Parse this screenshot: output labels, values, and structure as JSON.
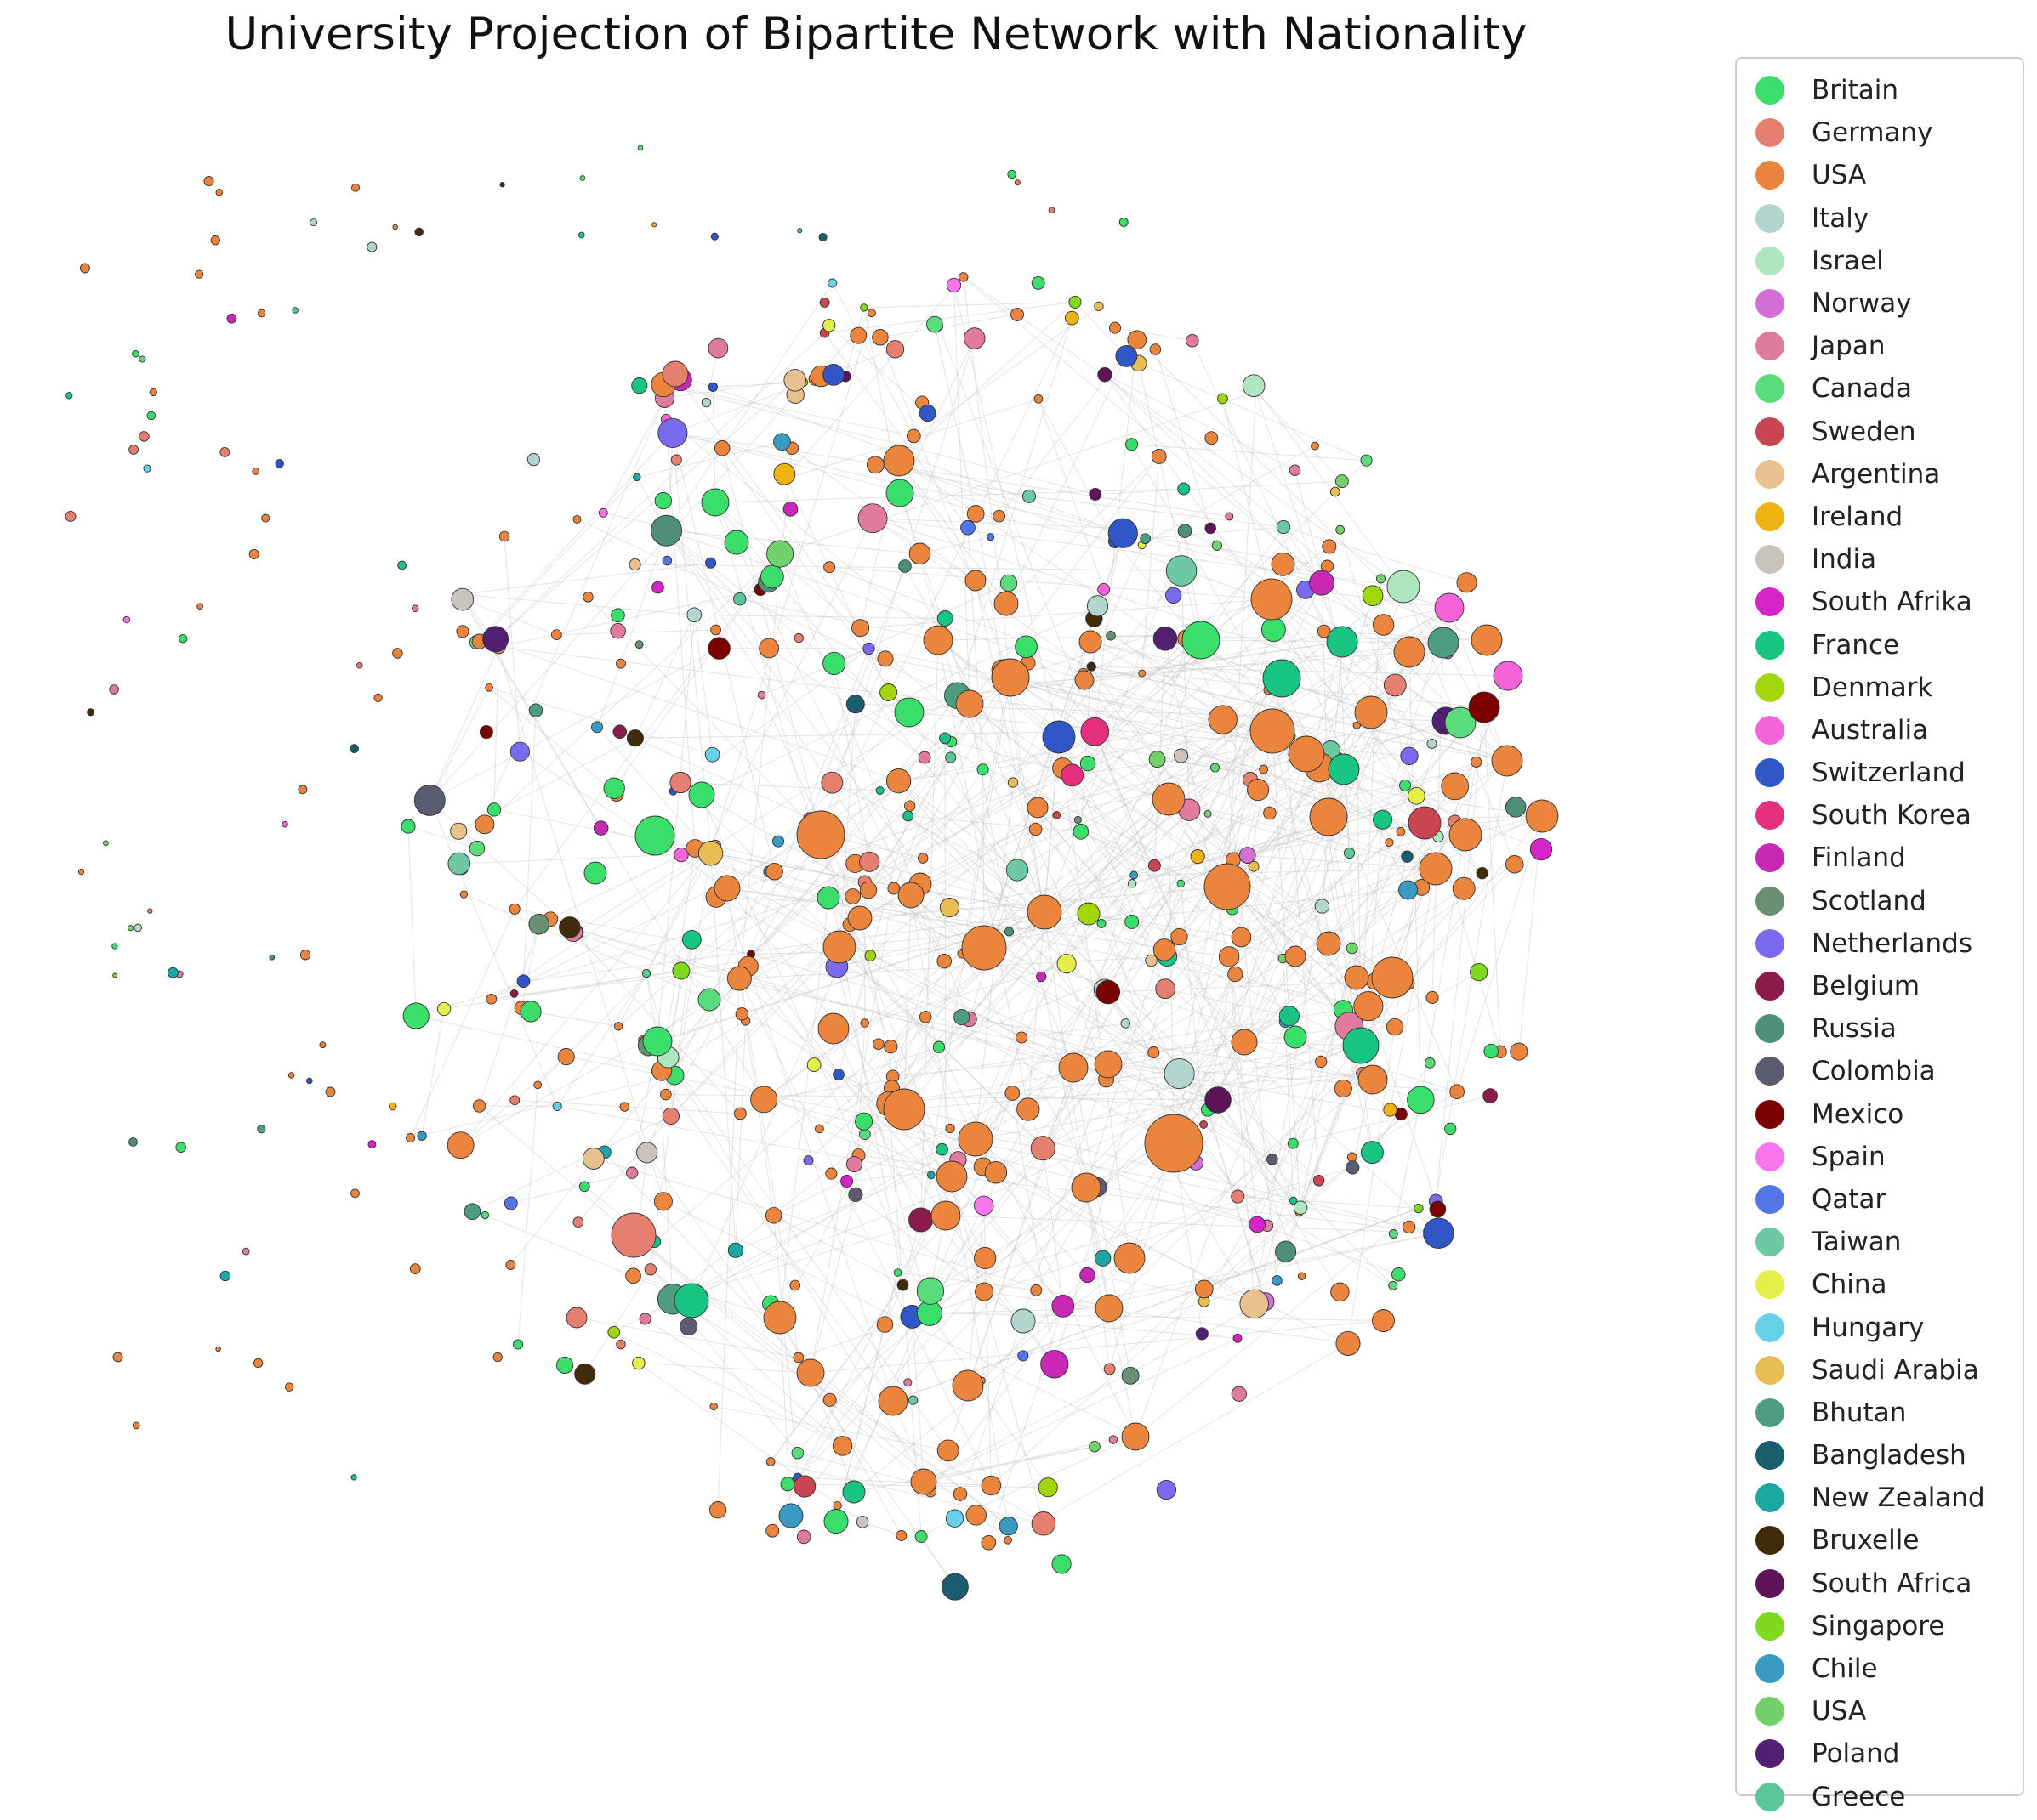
{
  "chart_data": {
    "type": "network",
    "title": "University Projection of Bipartite Network with Nationality",
    "legend_position": "right",
    "edge_color": "#c8c8c8",
    "node_outline_color": "#333333",
    "legend": [
      {
        "label": "Britain",
        "color": "#3ade6a"
      },
      {
        "label": "Germany",
        "color": "#e57f6f"
      },
      {
        "label": "USA",
        "color": "#eb843d"
      },
      {
        "label": "Italy",
        "color": "#b2d6cd"
      },
      {
        "label": "Israel",
        "color": "#afe6be"
      },
      {
        "label": "Norway",
        "color": "#d46ed6"
      },
      {
        "label": "Japan",
        "color": "#e07b9e"
      },
      {
        "label": "Canada",
        "color": "#5adc7c"
      },
      {
        "label": "Sweden",
        "color": "#c94552"
      },
      {
        "label": "Argentina",
        "color": "#e9c18f"
      },
      {
        "label": "Ireland",
        "color": "#eeb311"
      },
      {
        "label": "India",
        "color": "#c8c3bc"
      },
      {
        "label": "South Afrika",
        "color": "#d624c9"
      },
      {
        "label": "France",
        "color": "#17c482"
      },
      {
        "label": "Denmark",
        "color": "#a2d60a"
      },
      {
        "label": "Australia",
        "color": "#f464d8"
      },
      {
        "label": "Switzerland",
        "color": "#3156c8"
      },
      {
        "label": "South Korea",
        "color": "#e52f7f"
      },
      {
        "label": "Finland",
        "color": "#c828b4"
      },
      {
        "label": "Scotland",
        "color": "#699072"
      },
      {
        "label": "Netherlands",
        "color": "#7b69ef"
      },
      {
        "label": "Belgium",
        "color": "#8c1a4c"
      },
      {
        "label": "Russia",
        "color": "#508e7c"
      },
      {
        "label": "Colombia",
        "color": "#5b5b72"
      },
      {
        "label": "Mexico",
        "color": "#7b0000"
      },
      {
        "label": "Spain",
        "color": "#fa75ec"
      },
      {
        "label": "Qatar",
        "color": "#5475e5"
      },
      {
        "label": "Taiwan",
        "color": "#6ec8a3"
      },
      {
        "label": "China",
        "color": "#e5ef4b"
      },
      {
        "label": "Hungary",
        "color": "#66d2e8"
      },
      {
        "label": "Saudi Arabia",
        "color": "#e8bd54"
      },
      {
        "label": "Bhutan",
        "color": "#4d9d82"
      },
      {
        "label": "Bangladesh",
        "color": "#195d6e"
      },
      {
        "label": "New Zealand",
        "color": "#1ba8a4"
      },
      {
        "label": "Bruxelle",
        "color": "#402b0a"
      },
      {
        "label": "South Africa",
        "color": "#5e1458"
      },
      {
        "label": "Singapore",
        "color": "#7fd91e"
      },
      {
        "label": "Chile",
        "color": "#3b9ac2"
      },
      {
        "label": "USA",
        "color": "#73d16b"
      },
      {
        "label": "Poland",
        "color": "#512073"
      },
      {
        "label": "Greece",
        "color": "#5cc69a"
      }
    ]
  }
}
